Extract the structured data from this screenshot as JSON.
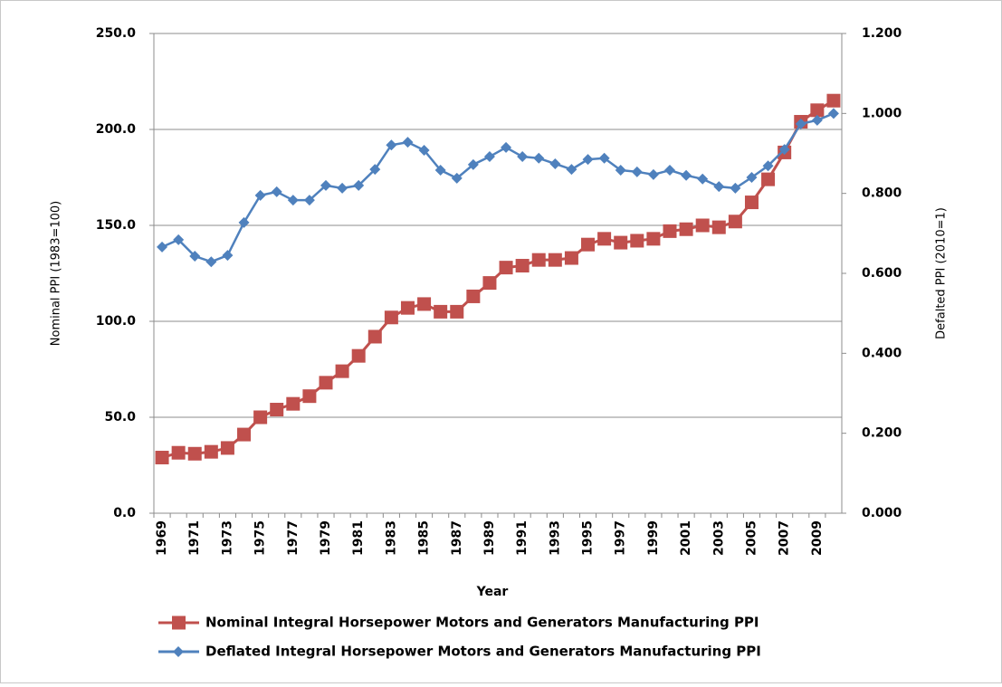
{
  "chart_data": {
    "type": "line",
    "x_label": "Year",
    "y_label": "Nominal PPI (1983=100)",
    "y2_label": "Defalted PPI (2010=1)",
    "categories": [
      "1969",
      null,
      "1971",
      null,
      "1973",
      null,
      "1975",
      null,
      "1977",
      null,
      "1979",
      null,
      "1981",
      null,
      "1983",
      null,
      "1985",
      null,
      "1987",
      null,
      "1989",
      null,
      "1991",
      null,
      "1993",
      null,
      "1995",
      null,
      "1997",
      null,
      "1999",
      null,
      "2001",
      null,
      "2003",
      null,
      "2005",
      null,
      "2007",
      null,
      "2009",
      null
    ],
    "series": [
      {
        "name": "Nominal Integral Horsepower Motors and Generators Manufacturing PPI",
        "color": "#c0504d",
        "marker": "square",
        "values": [
          29,
          31.5,
          31,
          32,
          34,
          41,
          50,
          54,
          57,
          61,
          68,
          74,
          82,
          92,
          102,
          107,
          109,
          105,
          105,
          113,
          120,
          128,
          129,
          132,
          132,
          133,
          140,
          143,
          141,
          142,
          143,
          147,
          148,
          150,
          149,
          152,
          162,
          174,
          188,
          204,
          210,
          215
        ]
      },
      {
        "name": "Deflated Integral Horsepower Motors and Generators Manufacturing PPI",
        "color": "#4f81bd",
        "marker": "diamond",
        "axis": "y2",
        "values": [
          0.666,
          0.684,
          0.643,
          0.629,
          0.645,
          0.727,
          0.795,
          0.804,
          0.783,
          0.783,
          0.82,
          0.813,
          0.82,
          0.86,
          0.921,
          0.928,
          0.908,
          0.858,
          0.838,
          0.872,
          0.892,
          0.915,
          0.892,
          0.888,
          0.874,
          0.86,
          0.885,
          0.888,
          0.858,
          0.854,
          0.847,
          0.858,
          0.845,
          0.836,
          0.817,
          0.813,
          0.84,
          0.869,
          0.91,
          0.974,
          0.983,
          1.0
        ]
      }
    ],
    "ylim": [
      0,
      250
    ],
    "yticks": [
      {
        "value": 0,
        "label": "0.0"
      },
      {
        "value": 50,
        "label": "50.0"
      },
      {
        "value": 100,
        "label": "100.0"
      },
      {
        "value": 150,
        "label": "150.0"
      },
      {
        "value": 200,
        "label": "200.0"
      },
      {
        "value": 250,
        "label": "250.0"
      }
    ],
    "y2lim": [
      0,
      1.2
    ],
    "y2ticks": [
      {
        "value": 0,
        "label": "0.000"
      },
      {
        "value": 0.2,
        "label": "0.200"
      },
      {
        "value": 0.4,
        "label": "0.400"
      },
      {
        "value": 0.6,
        "label": "0.600"
      },
      {
        "value": 0.8,
        "label": "0.800"
      },
      {
        "value": 1.0,
        "label": "1.000"
      },
      {
        "value": 1.2,
        "label": "1.200"
      }
    ],
    "grid": true,
    "legend": "bottom"
  }
}
